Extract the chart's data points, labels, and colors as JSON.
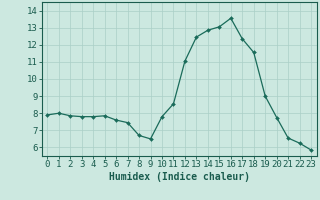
{
  "x": [
    0,
    1,
    2,
    3,
    4,
    5,
    6,
    7,
    8,
    9,
    10,
    11,
    12,
    13,
    14,
    15,
    16,
    17,
    18,
    19,
    20,
    21,
    22,
    23
  ],
  "y": [
    7.9,
    8.0,
    7.85,
    7.8,
    7.8,
    7.85,
    7.6,
    7.45,
    6.7,
    6.5,
    7.8,
    8.55,
    11.05,
    12.45,
    12.85,
    13.05,
    13.55,
    12.35,
    11.55,
    9.0,
    7.75,
    6.55,
    6.25,
    5.85
  ],
  "line_color": "#1a6b5a",
  "marker": "D",
  "marker_size": 2.0,
  "bg_color": "#cce8e0",
  "grid_color": "#aacfc7",
  "xlabel": "Humidex (Indice chaleur)",
  "xlim": [
    -0.5,
    23.5
  ],
  "ylim": [
    5.5,
    14.5
  ],
  "yticks": [
    6,
    7,
    8,
    9,
    10,
    11,
    12,
    13,
    14
  ],
  "xticks": [
    0,
    1,
    2,
    3,
    4,
    5,
    6,
    7,
    8,
    9,
    10,
    11,
    12,
    13,
    14,
    15,
    16,
    17,
    18,
    19,
    20,
    21,
    22,
    23
  ],
  "tick_label_color": "#1a5c4e",
  "axis_color": "#1a5c4e",
  "xlabel_fontsize": 7,
  "tick_fontsize": 6.5
}
